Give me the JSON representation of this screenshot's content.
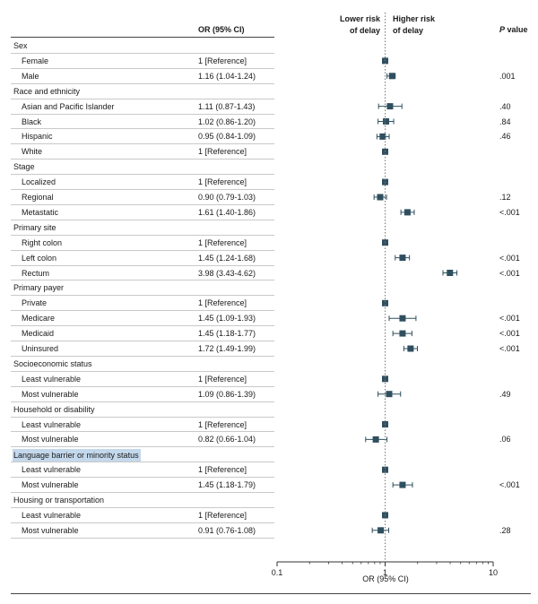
{
  "header": {
    "or_col": "OR (95% CI)",
    "p_col_italic": "P",
    "p_col_rest": " value",
    "lower_risk": [
      "Lower risk",
      "of delay"
    ],
    "higher_risk": [
      "Higher risk",
      "of delay"
    ]
  },
  "chart_data": {
    "type": "forest",
    "xlabel": "OR (95% CI)",
    "xscale": "log",
    "xlim": [
      0.1,
      10
    ],
    "xticks": [
      0.1,
      1,
      10
    ],
    "xtick_labels": [
      "0.1",
      "1",
      "10"
    ],
    "reference_line": 1,
    "marker_color": "#2f4f5f",
    "highlight_color": "#c4d8ec",
    "rows": [
      {
        "kind": "group",
        "label": "Sex"
      },
      {
        "kind": "item",
        "label": "Female",
        "or_text": "1 [Reference]",
        "or": 1,
        "lo": null,
        "hi": null,
        "p": ""
      },
      {
        "kind": "item",
        "label": "Male",
        "or_text": "1.16 (1.04-1.24)",
        "or": 1.16,
        "lo": 1.04,
        "hi": 1.24,
        "p": ".001"
      },
      {
        "kind": "group",
        "label": "Race and ethnicity"
      },
      {
        "kind": "item",
        "label": "Asian and Pacific Islander",
        "or_text": "1.11 (0.87-1.43)",
        "or": 1.11,
        "lo": 0.87,
        "hi": 1.43,
        "p": ".40"
      },
      {
        "kind": "item",
        "label": "Black",
        "or_text": "1.02 (0.86-1.20)",
        "or": 1.02,
        "lo": 0.86,
        "hi": 1.2,
        "p": ".84"
      },
      {
        "kind": "item",
        "label": "Hispanic",
        "or_text": "0.95 (0.84-1.09)",
        "or": 0.95,
        "lo": 0.84,
        "hi": 1.09,
        "p": ".46"
      },
      {
        "kind": "item",
        "label": "White",
        "or_text": "1 [Reference]",
        "or": 1,
        "lo": null,
        "hi": null,
        "p": ""
      },
      {
        "kind": "group",
        "label": "Stage"
      },
      {
        "kind": "item",
        "label": "Localized",
        "or_text": "1 [Reference]",
        "or": 1,
        "lo": null,
        "hi": null,
        "p": ""
      },
      {
        "kind": "item",
        "label": "Regional",
        "or_text": "0.90 (0.79-1.03)",
        "or": 0.9,
        "lo": 0.79,
        "hi": 1.03,
        "p": ".12"
      },
      {
        "kind": "item",
        "label": "Metastatic",
        "or_text": "1.61 (1.40-1.86)",
        "or": 1.61,
        "lo": 1.4,
        "hi": 1.86,
        "p": "<.001"
      },
      {
        "kind": "group",
        "label": "Primary site"
      },
      {
        "kind": "item",
        "label": "Right colon",
        "or_text": "1 [Reference]",
        "or": 1,
        "lo": null,
        "hi": null,
        "p": ""
      },
      {
        "kind": "item",
        "label": "Left colon",
        "or_text": "1.45 (1.24-1.68)",
        "or": 1.45,
        "lo": 1.24,
        "hi": 1.68,
        "p": "<.001"
      },
      {
        "kind": "item",
        "label": "Rectum",
        "or_text": "3.98 (3.43-4.62)",
        "or": 3.98,
        "lo": 3.43,
        "hi": 4.62,
        "p": "<.001"
      },
      {
        "kind": "group",
        "label": "Primary payer"
      },
      {
        "kind": "item",
        "label": "Private",
        "or_text": "1 [Reference]",
        "or": 1,
        "lo": null,
        "hi": null,
        "p": ""
      },
      {
        "kind": "item",
        "label": "Medicare",
        "or_text": "1.45 (1.09-1.93)",
        "or": 1.45,
        "lo": 1.09,
        "hi": 1.93,
        "p": "<.001"
      },
      {
        "kind": "item",
        "label": "Medicaid",
        "or_text": "1.45 (1.18-1.77)",
        "or": 1.45,
        "lo": 1.18,
        "hi": 1.77,
        "p": "<.001"
      },
      {
        "kind": "item",
        "label": "Uninsured",
        "or_text": "1.72 (1.49-1.99)",
        "or": 1.72,
        "lo": 1.49,
        "hi": 1.99,
        "p": "<.001"
      },
      {
        "kind": "group",
        "label": "Socioeconomic status"
      },
      {
        "kind": "item",
        "label": "Least vulnerable",
        "or_text": "1 [Reference]",
        "or": 1,
        "lo": null,
        "hi": null,
        "p": ""
      },
      {
        "kind": "item",
        "label": "Most vulnerable",
        "or_text": "1.09 (0.86-1.39)",
        "or": 1.09,
        "lo": 0.86,
        "hi": 1.39,
        "p": ".49"
      },
      {
        "kind": "group",
        "label": "Household or disability"
      },
      {
        "kind": "item",
        "label": "Least vulnerable",
        "or_text": "1 [Reference]",
        "or": 1,
        "lo": null,
        "hi": null,
        "p": ""
      },
      {
        "kind": "item",
        "label": "Most vulnerable",
        "or_text": "0.82 (0.66-1.04)",
        "or": 0.82,
        "lo": 0.66,
        "hi": 1.04,
        "p": ".06"
      },
      {
        "kind": "group",
        "label": "Language barrier or minority status",
        "highlight": true
      },
      {
        "kind": "item",
        "label": "Least vulnerable",
        "or_text": "1 [Reference]",
        "or": 1,
        "lo": null,
        "hi": null,
        "p": ""
      },
      {
        "kind": "item",
        "label": "Most vulnerable",
        "or_text": "1.45 (1.18-1.79)",
        "or": 1.45,
        "lo": 1.18,
        "hi": 1.79,
        "p": "<.001"
      },
      {
        "kind": "group",
        "label": "Housing or transportation"
      },
      {
        "kind": "item",
        "label": "Least vulnerable",
        "or_text": "1 [Reference]",
        "or": 1,
        "lo": null,
        "hi": null,
        "p": ""
      },
      {
        "kind": "item",
        "label": "Most vulnerable",
        "or_text": "0.91 (0.76-1.08)",
        "or": 0.91,
        "lo": 0.76,
        "hi": 1.08,
        "p": ".28"
      }
    ]
  }
}
